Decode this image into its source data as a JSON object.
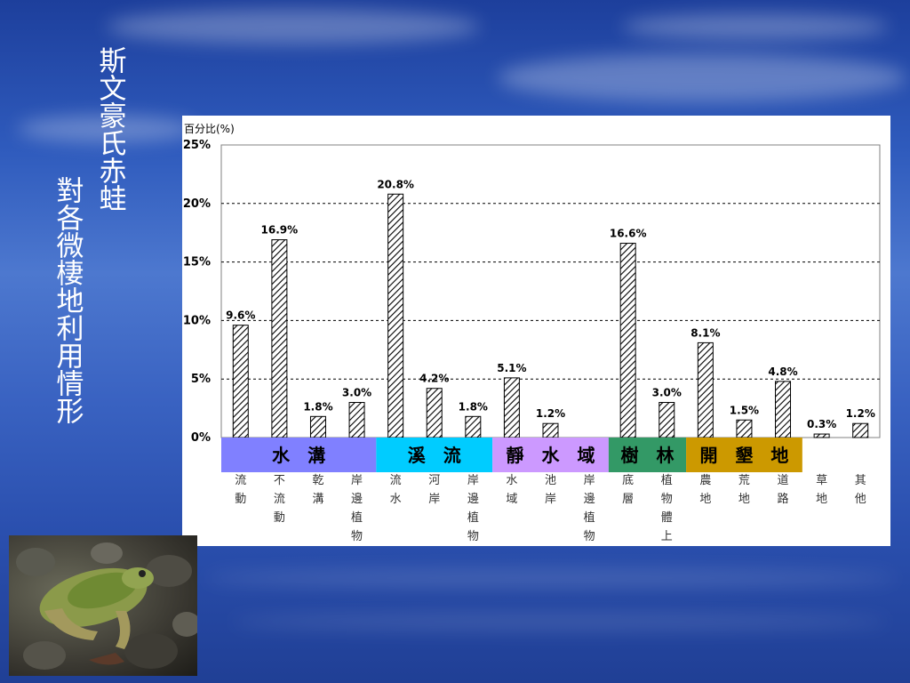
{
  "slide": {
    "title_line1": "斯文豪氏赤蛙",
    "title_line2": "對各微棲地利用情形"
  },
  "colors": {
    "group_water_ditch": "#8080ff",
    "group_stream": "#00ccff",
    "group_still_water": "#cc99ff",
    "group_forest": "#339966",
    "group_cultivated": "#cc9900"
  },
  "chart_data": {
    "type": "bar",
    "ylabel": "百分比(%)",
    "ylim": [
      0,
      25
    ],
    "yticks": [
      "0%",
      "5%",
      "10%",
      "15%",
      "20%",
      "25%"
    ],
    "grid": true,
    "bar_fill": "diagonal-hatch",
    "categories": [
      "流動",
      "不流動",
      "乾溝",
      "岸邊植物",
      "流水",
      "河岸",
      "岸邊植物",
      "水域",
      "池岸",
      "岸邊植物",
      "底層",
      "植物體上",
      "農地",
      "荒地",
      "道路",
      "草地",
      "其他"
    ],
    "values": [
      9.6,
      16.9,
      1.8,
      3.0,
      20.8,
      4.2,
      1.8,
      5.1,
      1.2,
      null,
      16.6,
      3.0,
      8.1,
      1.5,
      4.8,
      0.3,
      1.2
    ],
    "data_labels": [
      "9.6%",
      "16.9%",
      "1.8%",
      "3.0%",
      "20.8%",
      "4.2%",
      "1.8%",
      "5.1%",
      "1.2%",
      "",
      "16.6%",
      "3.0%",
      "8.1%",
      "1.5%",
      "4.8%",
      "0.3%",
      "1.2%"
    ],
    "groups": [
      {
        "label": "水 溝",
        "start": 0,
        "end": 3,
        "color": "#8080ff"
      },
      {
        "label": "溪 流",
        "start": 4,
        "end": 6,
        "color": "#00ccff"
      },
      {
        "label": "靜 水 域",
        "start": 7,
        "end": 9,
        "color": "#cc99ff"
      },
      {
        "label": "樹 林",
        "start": 10,
        "end": 11,
        "color": "#339966"
      },
      {
        "label": "開 墾 地",
        "start": 12,
        "end": 14,
        "color": "#cc9900"
      }
    ]
  }
}
